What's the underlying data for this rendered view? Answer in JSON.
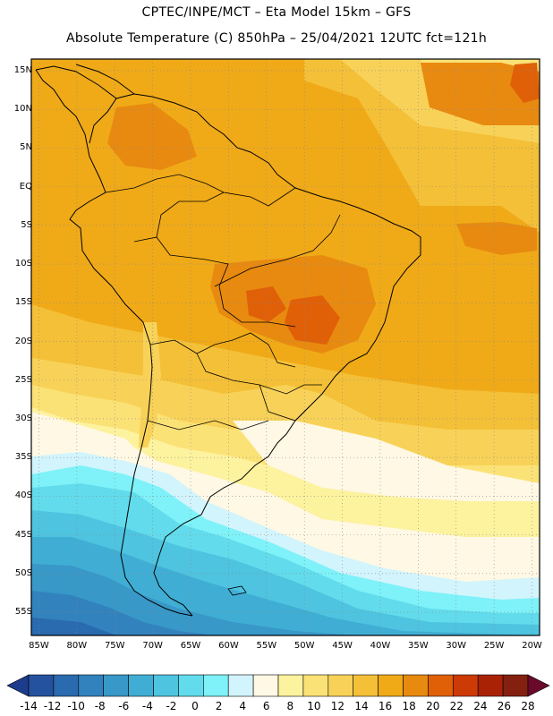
{
  "header": {
    "line1": "CPTEC/INPE/MCT –  Eta Model 15km – GFS",
    "line2": "Absolute Temperature (C) 850hPa – 25/04/2021 12UTC fct=121h"
  },
  "map": {
    "lon_range": [
      -86,
      -19
    ],
    "lat_range": [
      -58,
      16.5
    ],
    "lat_labels": [
      "15N",
      "10N",
      "5N",
      "EQ",
      "5S",
      "10S",
      "15S",
      "20S",
      "25S",
      "30S",
      "35S",
      "40S",
      "45S",
      "50S",
      "55S"
    ],
    "lat_values": [
      15,
      10,
      5,
      0,
      -5,
      -10,
      -15,
      -20,
      -25,
      -30,
      -35,
      -40,
      -45,
      -50,
      -55
    ],
    "lon_labels": [
      "85W",
      "80W",
      "75W",
      "70W",
      "65W",
      "60W",
      "55W",
      "50W",
      "45W",
      "40W",
      "35W",
      "30W",
      "25W",
      "20W"
    ],
    "lon_values": [
      -85,
      -80,
      -75,
      -70,
      -65,
      -60,
      -55,
      -50,
      -45,
      -40,
      -35,
      -30,
      -25,
      -20
    ]
  },
  "colorbar": {
    "labels": [
      "-14",
      "-12",
      "-10",
      "-8",
      "-6",
      "-4",
      "-2",
      "0",
      "2",
      "4",
      "6",
      "8",
      "10",
      "12",
      "14",
      "16",
      "18",
      "20",
      "22",
      "24",
      "26",
      "28"
    ],
    "colors": [
      "#1e3c8c",
      "#24529e",
      "#2a6aae",
      "#3282be",
      "#3898c8",
      "#40aed4",
      "#4ec4e0",
      "#62dcec",
      "#7ef2f8",
      "#d2f4fc",
      "#fff8e4",
      "#fdf29e",
      "#fbe276",
      "#f8d258",
      "#f4c038",
      "#f0aa18",
      "#e88a10",
      "#e06008",
      "#cc3a06",
      "#aa2206",
      "#842010",
      "#6a0a2a"
    ]
  }
}
